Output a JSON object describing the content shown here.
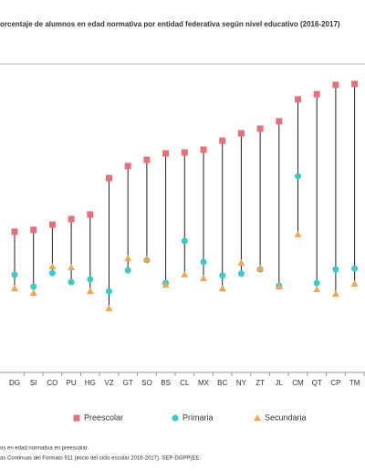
{
  "chart_data": {
    "type": "dot-range",
    "title": "orcentaje de alumnos en edad normativa por entidad federativa según nivel educativo (2016-2017)",
    "categories": [
      "DG",
      "SI",
      "CO",
      "PU",
      "HG",
      "VZ",
      "GT",
      "SO",
      "BS",
      "CL",
      "MX",
      "BC",
      "NY",
      "ZT",
      "JL",
      "CM",
      "QT",
      "CP",
      "TM"
    ],
    "series": [
      {
        "name": "Preescolar",
        "color": "#e5727a",
        "marker": "square",
        "values": [
          45.6,
          46.2,
          47.9,
          49.7,
          51.2,
          63.0,
          66.9,
          68.9,
          71.0,
          71.3,
          72.2,
          75.1,
          77.5,
          79.0,
          81.4,
          88.5,
          90.2,
          93.2,
          93.5
        ]
      },
      {
        "name": "Primaria",
        "color": "#3fc8c8",
        "marker": "circle",
        "values": [
          31.7,
          27.8,
          32.2,
          29.3,
          30.2,
          26.3,
          33.1,
          36.4,
          29.0,
          42.6,
          35.8,
          31.4,
          32.0,
          33.4,
          28.1,
          63.6,
          29.0,
          33.4,
          33.7
        ]
      },
      {
        "name": "Secundaria",
        "color": "#f2a553",
        "marker": "triangle",
        "values": [
          27.2,
          25.7,
          34.3,
          34.0,
          26.3,
          20.7,
          37.0,
          36.7,
          28.4,
          31.7,
          30.5,
          27.2,
          35.5,
          33.7,
          27.8,
          44.7,
          26.9,
          25.4,
          28.7
        ]
      }
    ],
    "ylim": [
      0,
      100
    ],
    "notes": [
      "os en edad normativa en preescolar.",
      "as Continuas del Formato 911 (inicio del ciclo escolar 2016-2017). SEP-DGPP(EE."
    ]
  }
}
